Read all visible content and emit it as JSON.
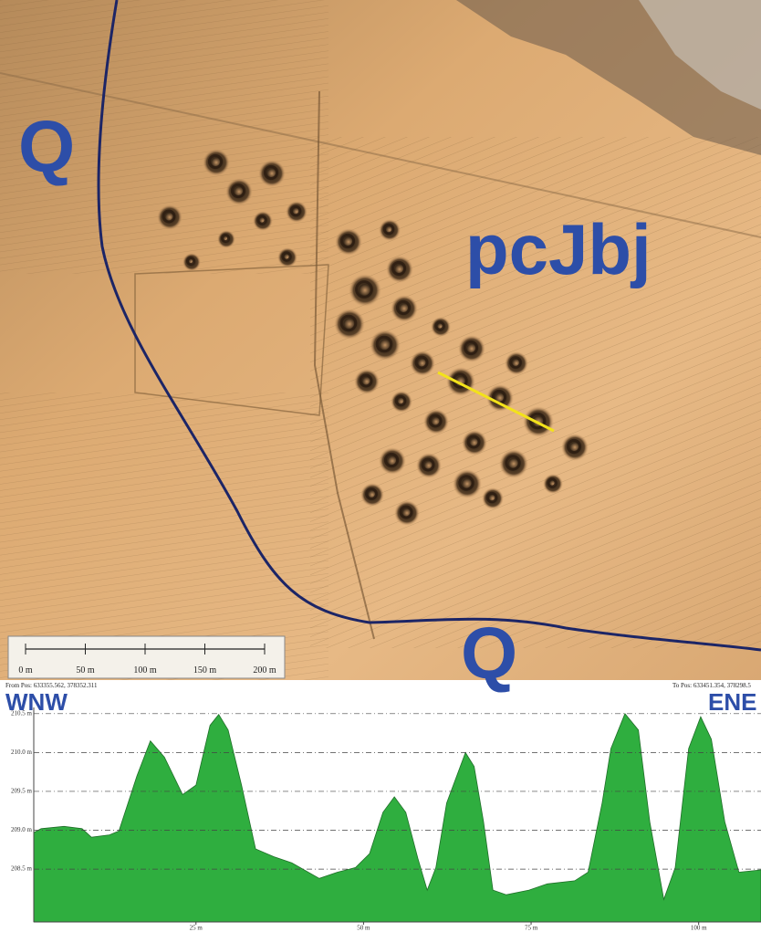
{
  "map": {
    "labels": [
      "Q",
      "pcJbj",
      "Q"
    ],
    "scale_bar": [
      "0 m",
      "50 m",
      "100 m",
      "150 m",
      "200 m"
    ]
  },
  "profile": {
    "from": "From Pos: 633355.562, 378352.311",
    "to": "To Pos: 633451.354, 378298.5",
    "left_label": "WNW",
    "right_label": "ENE"
  },
  "chart_data": {
    "type": "area",
    "color": "#2fae3f",
    "x": [
      0.8,
      1.9,
      5.3,
      8.0,
      9.4,
      12.1,
      13.5,
      16.2,
      18.2,
      20.3,
      23.0,
      25.0,
      27.1,
      28.4,
      29.8,
      31.8,
      33.9,
      36.6,
      39.3,
      43.4,
      46.1,
      48.8,
      50.9,
      52.9,
      54.6,
      56.3,
      58.1,
      59.5,
      60.8,
      62.4,
      65.2,
      66.5,
      67.9,
      69.3,
      71.3,
      74.7,
      77.4,
      81.5,
      83.5,
      85.6,
      86.9,
      89.0,
      91.0,
      92.7,
      94.8,
      96.5,
      98.5,
      100.3,
      101.9,
      103.9,
      106.0,
      109.3
    ],
    "values": [
      208.97,
      209.02,
      209.05,
      209.02,
      208.91,
      208.94,
      208.99,
      209.7,
      210.15,
      209.94,
      209.46,
      209.58,
      210.35,
      210.49,
      210.29,
      209.58,
      208.76,
      208.66,
      208.58,
      208.38,
      208.46,
      208.52,
      208.7,
      209.23,
      209.43,
      209.23,
      208.64,
      208.23,
      208.52,
      209.35,
      210.0,
      209.82,
      209.11,
      208.23,
      208.17,
      208.23,
      208.31,
      208.35,
      208.46,
      209.35,
      210.05,
      210.5,
      210.29,
      209.11,
      208.11,
      208.52,
      210.05,
      210.46,
      210.17,
      209.11,
      208.46,
      208.49
    ],
    "xlim": [
      0.8,
      109.3
    ],
    "ylim": [
      207.82,
      210.58
    ],
    "xticks": [
      {
        "value": 25,
        "label": "25 m"
      },
      {
        "value": 50,
        "label": "50 m"
      },
      {
        "value": 75,
        "label": "75 m"
      },
      {
        "value": 100,
        "label": "100 m"
      }
    ],
    "yticks": [
      {
        "value": 208.5,
        "label": "208.5 m"
      },
      {
        "value": 209.0,
        "label": "209.0 m"
      },
      {
        "value": 209.5,
        "label": "209.5 m"
      },
      {
        "value": 210.0,
        "label": "210.0 m"
      },
      {
        "value": 210.5,
        "label": "210.5 m"
      }
    ],
    "grid": true
  }
}
